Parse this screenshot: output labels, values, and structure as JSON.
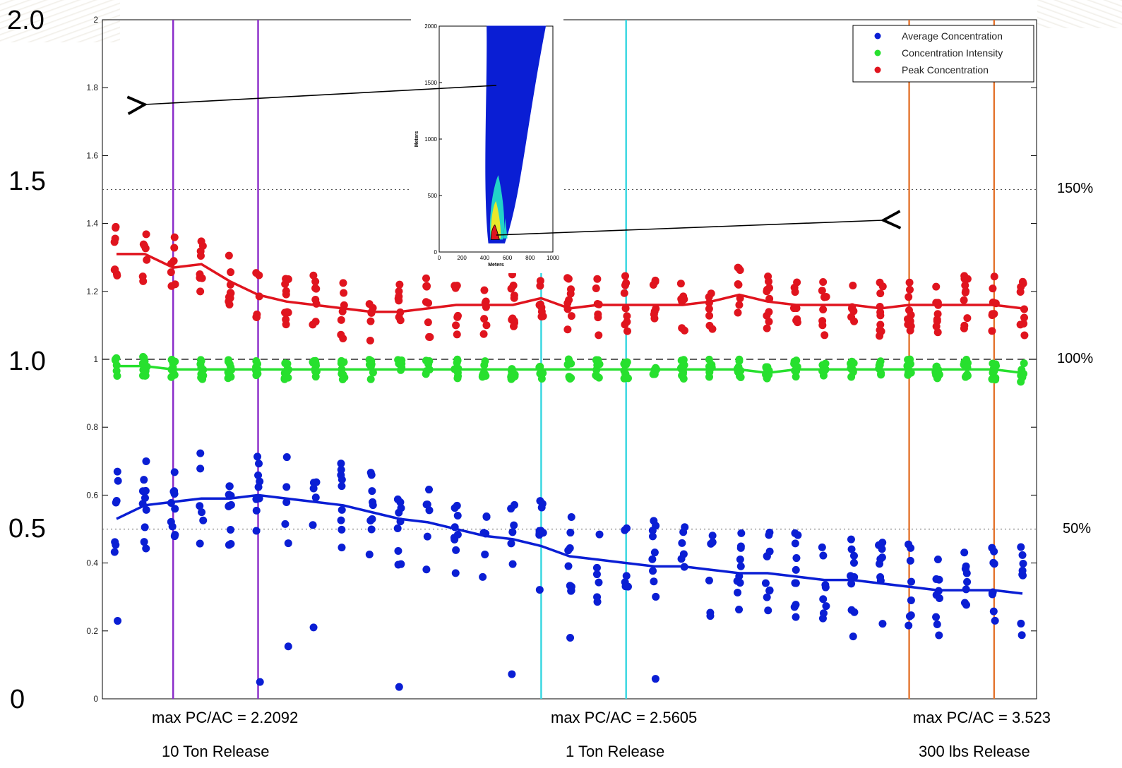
{
  "left_ticks": [
    "2.0",
    "1.5",
    "1.0",
    "0.5",
    "0"
  ],
  "right_ticks": [
    "150%",
    "100%",
    "50%"
  ],
  "releases": [
    {
      "ratio": "max PC/AC = 2.2092",
      "label": "10 Ton Release",
      "color": "#8a2bc9"
    },
    {
      "ratio": "max PC/AC = 2.5605",
      "label": "1 Ton Release",
      "color": "#33d6e0"
    },
    {
      "ratio": "max PC/AC = 3.523",
      "label": "300 lbs Release",
      "color": "#e4742e"
    }
  ],
  "inset": {
    "y_ticks": [
      "2000",
      "1500",
      "1000",
      "500",
      "0"
    ],
    "x_ticks": [
      "0",
      "200",
      "400",
      "600",
      "800",
      "1000"
    ],
    "xlabel": "Meters",
    "ylabel": "Meters"
  },
  "chart_data": {
    "type": "scatter",
    "ylim": [
      0,
      2
    ],
    "y_ticks": [
      "0",
      "0.2",
      "0.4",
      "0.6",
      "0.8",
      "1",
      "1.2",
      "1.4",
      "1.6",
      "1.8",
      "2"
    ],
    "grid": false,
    "legend_position": "top-right",
    "reference_lines": [
      {
        "y": 1.0,
        "style": "dashed"
      },
      {
        "y": 1.5,
        "style": "dotted"
      },
      {
        "y": 0.5,
        "style": "dotted"
      }
    ],
    "x_index": [
      0,
      1,
      2,
      3,
      4,
      5,
      6,
      7,
      8,
      9,
      10,
      11,
      12,
      13,
      14,
      15,
      16,
      17,
      18,
      19,
      20,
      21,
      22,
      23,
      24,
      25,
      26,
      27,
      28,
      29,
      30,
      31,
      32
    ],
    "release_boundaries": [
      2.5,
      5.5,
      15.5,
      18.5,
      28.5,
      31.5
    ],
    "series": [
      {
        "name": "Average Concentration",
        "color": "#0a1ed4",
        "values": [
          0.53,
          0.57,
          0.58,
          0.59,
          0.59,
          0.6,
          0.59,
          0.58,
          0.57,
          0.55,
          0.53,
          0.52,
          0.5,
          0.48,
          0.47,
          0.45,
          0.42,
          0.41,
          0.4,
          0.39,
          0.39,
          0.38,
          0.37,
          0.37,
          0.36,
          0.35,
          0.35,
          0.34,
          0.33,
          0.32,
          0.32,
          0.32,
          0.31
        ]
      },
      {
        "name": "Concentration Intensity",
        "color": "#27e02e",
        "values": [
          0.98,
          0.98,
          0.97,
          0.97,
          0.97,
          0.97,
          0.97,
          0.97,
          0.97,
          0.97,
          0.97,
          0.97,
          0.97,
          0.97,
          0.97,
          0.97,
          0.97,
          0.97,
          0.97,
          0.97,
          0.97,
          0.97,
          0.97,
          0.96,
          0.97,
          0.97,
          0.97,
          0.97,
          0.97,
          0.97,
          0.97,
          0.97,
          0.96
        ]
      },
      {
        "name": "Peak Concentration",
        "color": "#e0141e",
        "values": [
          1.31,
          1.31,
          1.27,
          1.28,
          1.23,
          1.19,
          1.17,
          1.16,
          1.15,
          1.14,
          1.14,
          1.15,
          1.16,
          1.16,
          1.16,
          1.18,
          1.15,
          1.16,
          1.16,
          1.16,
          1.16,
          1.17,
          1.19,
          1.17,
          1.16,
          1.16,
          1.16,
          1.15,
          1.16,
          1.16,
          1.16,
          1.16,
          1.15
        ]
      }
    ]
  }
}
